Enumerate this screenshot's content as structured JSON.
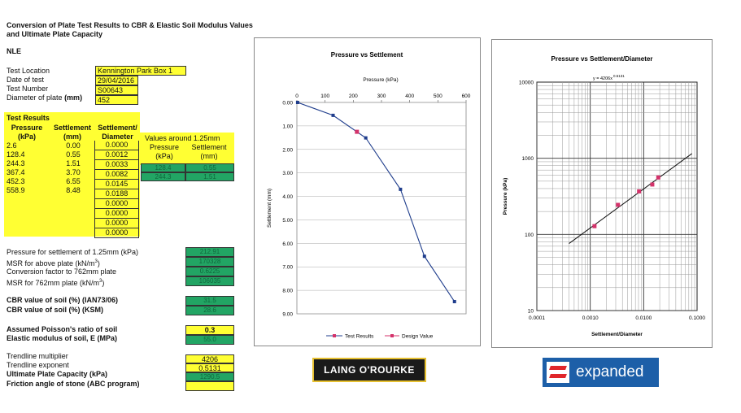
{
  "title_line1": "Conversion of Plate Test Results to CBR & Elastic Soil Modulus Values",
  "title_line2": "and Ultimate Plate Capacity",
  "nle": "NLE",
  "info": [
    {
      "label": "Test Location",
      "value": "Kennington Park Box 1"
    },
    {
      "label": "Date of test",
      "value": "29/04/2016"
    },
    {
      "label": "Test Number",
      "value": "S00643"
    },
    {
      "label": "Diameter of plate",
      "unit": "(mm)",
      "value": "452"
    }
  ],
  "results": {
    "heading": "Test Results",
    "col_pressure": "Pressure",
    "col_pressure_unit": "(kPa)",
    "col_settlement": "Settlement",
    "col_settlement_unit": "(mm)",
    "col_ratio": "Settlement/",
    "col_ratio2": "Diameter",
    "pressure": [
      "2.6",
      "128.4",
      "244.3",
      "367.4",
      "452.3",
      "558.9",
      "",
      "",
      "",
      ""
    ],
    "settlement": [
      "0.00",
      "0.55",
      "1.51",
      "3.70",
      "6.55",
      "8.48",
      "",
      "",
      "",
      ""
    ],
    "ratio": [
      "0.0000",
      "0.0012",
      "0.0033",
      "0.0082",
      "0.0145",
      "0.0188",
      "0.0000",
      "0.0000",
      "0.0000",
      "0.0000"
    ]
  },
  "around": {
    "heading": "Values around 1.25mm",
    "col_pressure": "Pressure",
    "col_pressure_unit": "(kPa)",
    "col_settlement": "Settlement",
    "col_settlement_unit": "(mm)",
    "rows": [
      [
        "128.4",
        "0.55"
      ],
      [
        "244.3",
        "1.51"
      ]
    ]
  },
  "calcs": [
    {
      "label": "Pressure for settlement of 1.25mm (kPa)",
      "value": "212.91",
      "bold": false
    },
    {
      "label": "MSR for above plate (kN/m",
      "sup": "3",
      "tail": ")",
      "value": "170328",
      "bold": false
    },
    {
      "label": "Conversion factor to 762mm plate",
      "value": "0.6225",
      "bold": false
    },
    {
      "label": "MSR for 762mm plate (kN/m",
      "sup": "3",
      "tail": ")",
      "value": "106035",
      "bold": false
    }
  ],
  "cbr": [
    {
      "label": "CBR value of soil (%) (IAN73/06)",
      "value": "31.5"
    },
    {
      "label": "CBR value of soil (%) (KSM)",
      "value": "28.6"
    }
  ],
  "poisson": {
    "label": "Assumed Poisson's ratio of soil",
    "value": "0.3"
  },
  "elastic": {
    "label": "Elastic modulus of soil, E (MPa)",
    "value": "55.0"
  },
  "trend": [
    {
      "label": "Trendline multiplier",
      "value": "4206",
      "style": "yel",
      "bold": false
    },
    {
      "label": "Trendline exponent",
      "value": "0.5131",
      "style": "yel",
      "bold": false
    },
    {
      "label": "Ultimate Plate Capacity (kPa)",
      "value": "1290.5",
      "style": "grn",
      "bold": true
    },
    {
      "label": "Friction angle of stone (ABC program)",
      "value": "",
      "style": "yel",
      "bold": true
    }
  ],
  "chart_data": [
    {
      "type": "line",
      "title": "Pressure vs Settlement",
      "xlabel": "Pressure (kPa)",
      "ylabel": "Settlement (mm)",
      "xlim": [
        0,
        600
      ],
      "ylim": [
        9,
        0
      ],
      "xticks": [
        "0",
        "100",
        "200",
        "300",
        "400",
        "500",
        "600"
      ],
      "yticks": [
        "0.00",
        "1.00",
        "2.00",
        "3.00",
        "4.00",
        "5.00",
        "6.00",
        "7.00",
        "8.00",
        "9.00"
      ],
      "series": [
        {
          "name": "Test Results",
          "color": "#1f3d8c",
          "x": [
            2.6,
            128.4,
            244.3,
            367.4,
            452.3,
            558.9
          ],
          "y": [
            0.0,
            0.55,
            1.51,
            3.7,
            6.55,
            8.48
          ]
        },
        {
          "name": "Design Value",
          "color": "#d4336b",
          "x": [
            212.91
          ],
          "y": [
            1.25
          ]
        }
      ],
      "legend": "bottom"
    },
    {
      "type": "scatter",
      "title": "Pressure vs Settlement/Diameter",
      "xlabel": "Settlement/Diameter",
      "ylabel": "Pressure (kPa)",
      "xscale": "log",
      "yscale": "log",
      "xlim": [
        0.0001,
        0.1
      ],
      "ylim": [
        10,
        10000
      ],
      "xticks": [
        "0.0001",
        "0.0010",
        "0.0100",
        "0.1000"
      ],
      "yticks": [
        "10",
        "100",
        "1000",
        "10000"
      ],
      "trendline": {
        "label": "y = 4206x",
        "exponent_label": "0.5131",
        "multiplier": 4206,
        "exponent": 0.5131,
        "x_range": [
          0.0004,
          0.08
        ]
      },
      "series": [
        {
          "name": "Test Results",
          "color": "#d4336b",
          "x": [
            0.0012,
            0.0033,
            0.0082,
            0.0145,
            0.0188
          ],
          "y": [
            128.4,
            244.3,
            367.4,
            452.3,
            558.9
          ]
        }
      ]
    }
  ],
  "logo1": "LAING O'ROURKE",
  "logo2": "expanded",
  "colors": {
    "yellow": "#ffff33",
    "green": "#22a564",
    "logo1_bg": "#1a1a1a",
    "logo2_bg": "#1d5fa8",
    "logo2_mark": "#e0262b"
  }
}
